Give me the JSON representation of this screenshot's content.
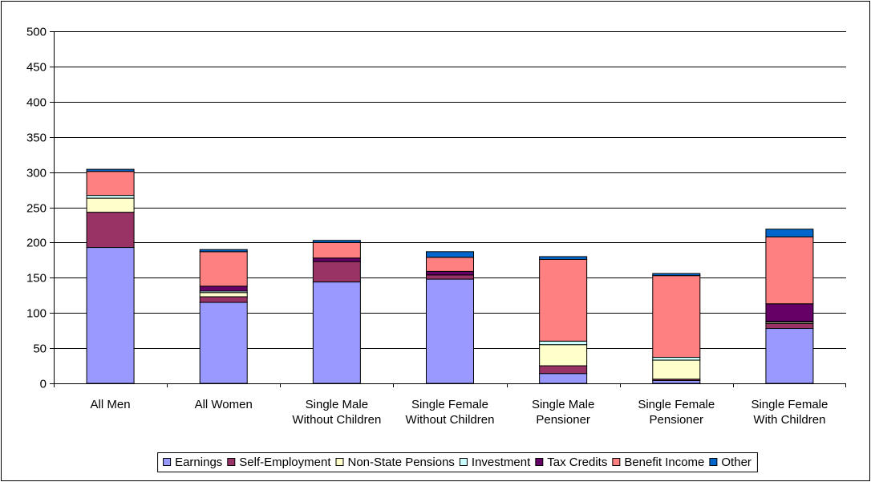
{
  "chart_data": {
    "type": "bar",
    "stacked": true,
    "title": "",
    "xlabel": "",
    "ylabel": "",
    "ylim": [
      0,
      500
    ],
    "yticks": [
      0,
      50,
      100,
      150,
      200,
      250,
      300,
      350,
      400,
      450,
      500
    ],
    "grid": true,
    "legend_position": "bottom",
    "categories": [
      [
        "All Men"
      ],
      [
        "All Women"
      ],
      [
        "Single Male",
        "Without Children"
      ],
      [
        "Single Female",
        "Without Children"
      ],
      [
        "Single Male",
        "Pensioner"
      ],
      [
        "Single Female",
        "Pensioner"
      ],
      [
        "Single Female",
        "With Children"
      ]
    ],
    "series": [
      {
        "name": "Earnings",
        "color": "#9999ff",
        "values": [
          193,
          115,
          144,
          148,
          14,
          4,
          78
        ]
      },
      {
        "name": "Self-Employment",
        "color": "#993366",
        "values": [
          50,
          8,
          29,
          6,
          11,
          2,
          7
        ]
      },
      {
        "name": "Non-State Pensions",
        "color": "#ffffcc",
        "values": [
          20,
          6,
          0,
          0,
          30,
          27,
          2
        ]
      },
      {
        "name": "Investment",
        "color": "#ccffff",
        "values": [
          4,
          2,
          0,
          0,
          5,
          4,
          1
        ]
      },
      {
        "name": "Tax Credits",
        "color": "#660066",
        "values": [
          0,
          7,
          5,
          5,
          0,
          0,
          25
        ]
      },
      {
        "name": "Benefit Income",
        "color": "#ff8080",
        "values": [
          34,
          49,
          22,
          20,
          116,
          116,
          95
        ]
      },
      {
        "name": "Other",
        "color": "#0066cc",
        "values": [
          3,
          3,
          3,
          8,
          4,
          3,
          11
        ]
      }
    ]
  }
}
